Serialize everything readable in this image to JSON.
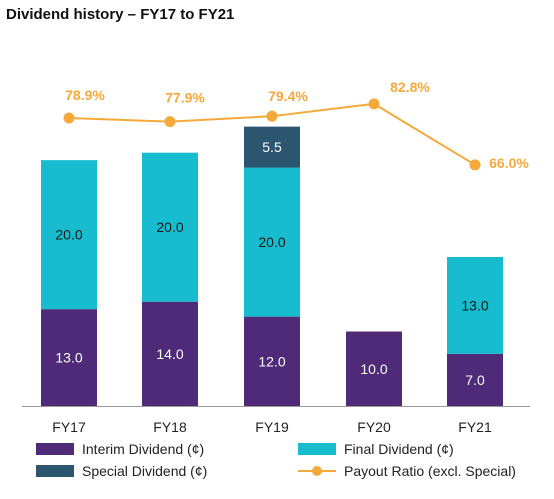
{
  "chart_data": {
    "type": "bar",
    "title": "Dividend history – FY17 to FY21",
    "categories": [
      "FY17",
      "FY18",
      "FY19",
      "FY20",
      "FY21"
    ],
    "series": [
      {
        "name": "Interim Dividend (¢)",
        "values": [
          13.0,
          14.0,
          12.0,
          10.0,
          7.0
        ],
        "labels": [
          "13.0",
          "14.0",
          "12.0",
          "10.0",
          "7.0"
        ],
        "color": "#4E2A78"
      },
      {
        "name": "Final Dividend (¢)",
        "values": [
          20.0,
          20.0,
          20.0,
          0,
          13.0
        ],
        "labels": [
          "20.0",
          "20.0",
          "20.0",
          "",
          "13.0"
        ],
        "color": "#17BCCF"
      },
      {
        "name": "Special Dividend (¢)",
        "values": [
          0,
          0,
          5.5,
          0,
          0
        ],
        "labels": [
          "",
          "",
          "5.5",
          "",
          ""
        ],
        "color": "#2C5570"
      }
    ],
    "line_series": {
      "name": "Payout Ratio (excl. Special)",
      "values": [
        78.9,
        77.9,
        79.4,
        82.8,
        66.0
      ],
      "labels": [
        "78.9%",
        "77.9%",
        "79.4%",
        "82.8%",
        "66.0%"
      ],
      "color": "#F5A93A"
    },
    "legend_position": "bottom",
    "grid": false
  }
}
